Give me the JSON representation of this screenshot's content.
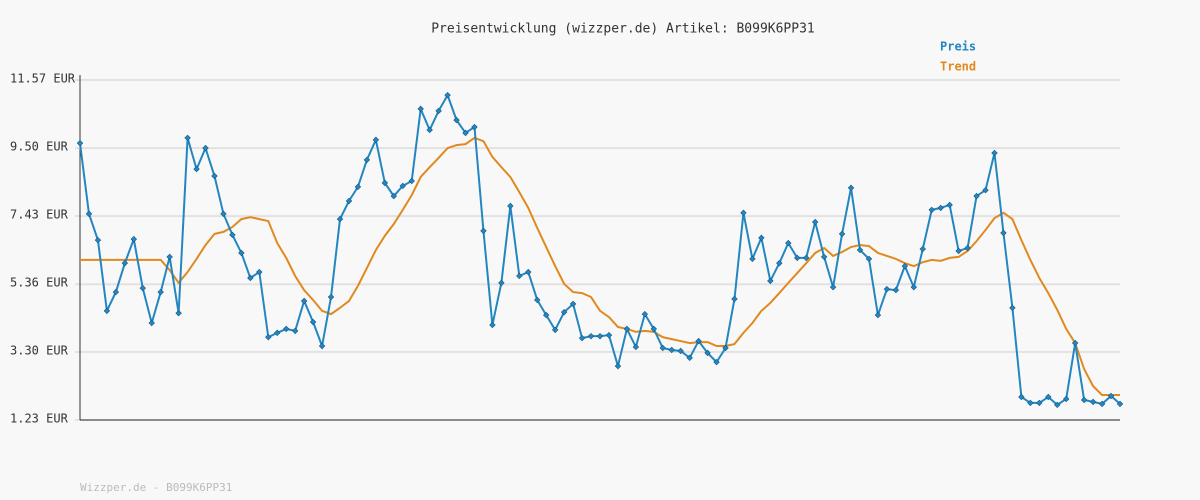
{
  "chart_data": {
    "type": "line",
    "title": "Preisentwicklung (wizzper.de) Artikel: B099K6PP31",
    "ylim": [
      1.23,
      11.57
    ],
    "yticks": [
      {
        "value": 1.23,
        "label": "1.23 EUR"
      },
      {
        "value": 3.3,
        "label": "3.30 EUR"
      },
      {
        "value": 5.36,
        "label": "5.36 EUR"
      },
      {
        "value": 7.43,
        "label": "7.43 EUR"
      },
      {
        "value": 9.5,
        "label": "9.50 EUR"
      },
      {
        "value": 11.57,
        "label": "11.57 EUR"
      }
    ],
    "grid": true,
    "legend": "top-right",
    "series": [
      {
        "name": "Preis",
        "color": "#2486c0",
        "markers": true,
        "values": [
          9.65,
          7.5,
          6.7,
          4.55,
          5.12,
          6.0,
          6.73,
          5.24,
          4.18,
          5.12,
          6.19,
          4.48,
          9.81,
          8.86,
          9.5,
          8.65,
          7.5,
          6.86,
          6.31,
          5.55,
          5.73,
          3.75,
          3.88,
          4.0,
          3.94,
          4.85,
          4.21,
          3.48,
          4.97,
          7.34,
          7.89,
          8.32,
          9.14,
          9.75,
          8.44,
          8.04,
          8.35,
          8.5,
          10.69,
          10.05,
          10.63,
          11.11,
          10.35,
          9.96,
          10.14,
          6.98,
          4.12,
          5.4,
          7.74,
          5.61,
          5.73,
          4.88,
          4.42,
          3.97,
          4.51,
          4.76,
          3.72,
          3.78,
          3.78,
          3.81,
          2.87,
          4.0,
          3.45,
          4.45,
          4.0,
          3.42,
          3.36,
          3.33,
          3.12,
          3.63,
          3.27,
          2.99,
          3.42,
          4.91,
          7.53,
          6.13,
          6.77,
          5.46,
          6.0,
          6.61,
          6.16,
          6.16,
          7.25,
          6.19,
          5.27,
          6.89,
          8.29,
          6.4,
          6.13,
          4.42,
          5.21,
          5.18,
          5.91,
          5.27,
          6.43,
          7.62,
          7.68,
          7.77,
          6.37,
          6.46,
          8.04,
          8.22,
          9.35,
          6.92,
          4.64,
          1.93,
          1.75,
          1.75,
          1.93,
          1.69,
          1.87,
          3.57,
          1.84,
          1.78,
          1.72,
          1.96,
          1.72
        ]
      },
      {
        "name": "Trend",
        "color": "#e0891e",
        "markers": false,
        "values": [
          6.1,
          6.1,
          6.1,
          6.1,
          6.1,
          6.1,
          6.1,
          6.1,
          6.1,
          6.1,
          5.79,
          5.4,
          5.73,
          6.13,
          6.55,
          6.89,
          6.95,
          7.1,
          7.34,
          7.4,
          7.34,
          7.28,
          6.61,
          6.16,
          5.61,
          5.18,
          4.88,
          4.55,
          4.45,
          4.64,
          4.85,
          5.31,
          5.85,
          6.4,
          6.83,
          7.19,
          7.62,
          8.07,
          8.62,
          8.92,
          9.2,
          9.5,
          9.59,
          9.62,
          9.81,
          9.71,
          9.23,
          8.92,
          8.62,
          8.16,
          7.68,
          7.07,
          6.49,
          5.91,
          5.37,
          5.12,
          5.09,
          4.97,
          4.55,
          4.36,
          4.06,
          4.0,
          3.91,
          3.94,
          3.91,
          3.75,
          3.69,
          3.63,
          3.57,
          3.6,
          3.6,
          3.48,
          3.48,
          3.54,
          3.88,
          4.18,
          4.55,
          4.79,
          5.09,
          5.4,
          5.7,
          6.0,
          6.31,
          6.46,
          6.22,
          6.34,
          6.49,
          6.55,
          6.52,
          6.31,
          6.22,
          6.13,
          6.0,
          5.91,
          6.03,
          6.1,
          6.07,
          6.16,
          6.19,
          6.37,
          6.67,
          7.01,
          7.37,
          7.53,
          7.34,
          6.7,
          6.1,
          5.55,
          5.09,
          4.58,
          4.0,
          3.57,
          2.78,
          2.26,
          1.99,
          1.99,
          1.99
        ]
      }
    ]
  },
  "footer": "Wizzper.de - B099K6PP31"
}
